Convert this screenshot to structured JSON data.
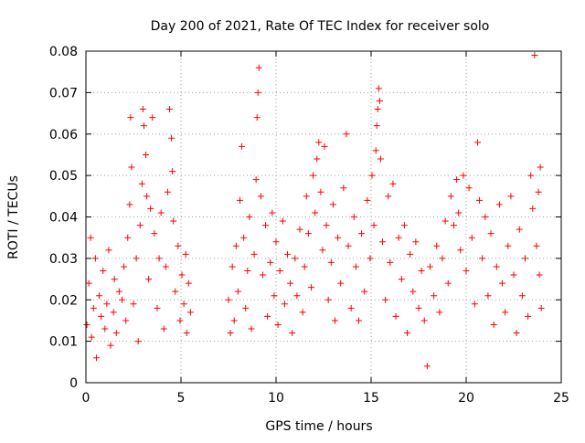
{
  "chart_data": {
    "type": "scatter",
    "title": "Day 200 of 2021, Rate Of TEC Index for receiver solo",
    "xlabel": "GPS time / hours",
    "ylabel": "ROTI / TECUs",
    "xlim": [
      0,
      25
    ],
    "ylim": [
      0,
      0.08
    ],
    "x_ticks": [
      0,
      5,
      10,
      15,
      20,
      25
    ],
    "x_tick_labels": [
      "0",
      "5",
      "10",
      "15",
      "20",
      "25"
    ],
    "y_ticks": [
      0,
      0.01,
      0.02,
      0.03,
      0.04,
      0.05,
      0.06,
      0.07,
      0.08
    ],
    "y_tick_labels": [
      "0",
      "0.01",
      "0.02",
      "0.03",
      "0.04",
      "0.05",
      "0.06",
      "0.07",
      "0.08"
    ],
    "grid": true,
    "marker": "plus",
    "series": [
      {
        "color": "#ff0000",
        "points": [
          [
            0.05,
            0.014
          ],
          [
            0.15,
            0.024
          ],
          [
            0.25,
            0.035
          ],
          [
            0.3,
            0.011
          ],
          [
            0.4,
            0.018
          ],
          [
            0.5,
            0.03
          ],
          [
            0.55,
            0.006
          ],
          [
            0.7,
            0.021
          ],
          [
            0.8,
            0.016
          ],
          [
            0.9,
            0.027
          ],
          [
            1.0,
            0.013
          ],
          [
            1.1,
            0.019
          ],
          [
            1.2,
            0.032
          ],
          [
            1.3,
            0.009
          ],
          [
            1.45,
            0.017
          ],
          [
            1.5,
            0.025
          ],
          [
            1.6,
            0.012
          ],
          [
            1.75,
            0.022
          ],
          [
            1.9,
            0.02
          ],
          [
            2.0,
            0.028
          ],
          [
            2.1,
            0.015
          ],
          [
            2.2,
            0.035
          ],
          [
            2.3,
            0.043
          ],
          [
            2.35,
            0.064
          ],
          [
            2.4,
            0.052
          ],
          [
            2.5,
            0.019
          ],
          [
            2.65,
            0.03
          ],
          [
            2.75,
            0.01
          ],
          [
            2.85,
            0.038
          ],
          [
            2.95,
            0.048
          ],
          [
            3.0,
            0.066
          ],
          [
            3.05,
            0.062
          ],
          [
            3.15,
            0.055
          ],
          [
            3.2,
            0.045
          ],
          [
            3.3,
            0.025
          ],
          [
            3.4,
            0.042
          ],
          [
            3.5,
            0.064
          ],
          [
            3.6,
            0.036
          ],
          [
            3.75,
            0.018
          ],
          [
            3.85,
            0.03
          ],
          [
            3.95,
            0.041
          ],
          [
            4.1,
            0.013
          ],
          [
            4.2,
            0.028
          ],
          [
            4.3,
            0.046
          ],
          [
            4.4,
            0.066
          ],
          [
            4.5,
            0.059
          ],
          [
            4.55,
            0.051
          ],
          [
            4.6,
            0.039
          ],
          [
            4.7,
            0.022
          ],
          [
            4.85,
            0.033
          ],
          [
            4.95,
            0.015
          ],
          [
            5.05,
            0.026
          ],
          [
            5.15,
            0.019
          ],
          [
            5.25,
            0.031
          ],
          [
            5.3,
            0.012
          ],
          [
            5.4,
            0.024
          ],
          [
            5.5,
            0.017
          ],
          [
            7.5,
            0.02
          ],
          [
            7.6,
            0.012
          ],
          [
            7.7,
            0.028
          ],
          [
            7.8,
            0.015
          ],
          [
            7.9,
            0.033
          ],
          [
            8.0,
            0.022
          ],
          [
            8.1,
            0.044
          ],
          [
            8.2,
            0.057
          ],
          [
            8.3,
            0.035
          ],
          [
            8.4,
            0.018
          ],
          [
            8.5,
            0.027
          ],
          [
            8.6,
            0.04
          ],
          [
            8.7,
            0.013
          ],
          [
            8.85,
            0.031
          ],
          [
            8.95,
            0.049
          ],
          [
            9.0,
            0.064
          ],
          [
            9.05,
            0.07
          ],
          [
            9.1,
            0.076
          ],
          [
            9.2,
            0.045
          ],
          [
            9.3,
            0.026
          ],
          [
            9.45,
            0.038
          ],
          [
            9.55,
            0.016
          ],
          [
            9.7,
            0.029
          ],
          [
            9.8,
            0.041
          ],
          [
            9.9,
            0.021
          ],
          [
            10.0,
            0.034
          ],
          [
            10.1,
            0.014
          ],
          [
            10.2,
            0.027
          ],
          [
            10.35,
            0.039
          ],
          [
            10.45,
            0.019
          ],
          [
            10.6,
            0.031
          ],
          [
            10.75,
            0.024
          ],
          [
            10.85,
            0.012
          ],
          [
            11.0,
            0.03
          ],
          [
            11.1,
            0.021
          ],
          [
            11.25,
            0.037
          ],
          [
            11.4,
            0.017
          ],
          [
            11.5,
            0.028
          ],
          [
            11.6,
            0.045
          ],
          [
            11.7,
            0.036
          ],
          [
            11.85,
            0.023
          ],
          [
            11.95,
            0.05
          ],
          [
            12.05,
            0.041
          ],
          [
            12.15,
            0.054
          ],
          [
            12.25,
            0.058
          ],
          [
            12.35,
            0.046
          ],
          [
            12.45,
            0.032
          ],
          [
            12.55,
            0.057
          ],
          [
            12.65,
            0.038
          ],
          [
            12.75,
            0.02
          ],
          [
            12.9,
            0.029
          ],
          [
            13.0,
            0.043
          ],
          [
            13.1,
            0.015
          ],
          [
            13.25,
            0.035
          ],
          [
            13.4,
            0.024
          ],
          [
            13.55,
            0.047
          ],
          [
            13.7,
            0.06
          ],
          [
            13.8,
            0.033
          ],
          [
            13.95,
            0.018
          ],
          [
            14.1,
            0.04
          ],
          [
            14.2,
            0.028
          ],
          [
            14.35,
            0.015
          ],
          [
            14.5,
            0.036
          ],
          [
            14.65,
            0.022
          ],
          [
            14.8,
            0.044
          ],
          [
            14.95,
            0.03
          ],
          [
            15.05,
            0.05
          ],
          [
            15.15,
            0.038
          ],
          [
            15.25,
            0.056
          ],
          [
            15.3,
            0.062
          ],
          [
            15.35,
            0.066
          ],
          [
            15.4,
            0.071
          ],
          [
            15.45,
            0.068
          ],
          [
            15.5,
            0.054
          ],
          [
            15.6,
            0.034
          ],
          [
            15.75,
            0.02
          ],
          [
            15.9,
            0.045
          ],
          [
            16.0,
            0.029
          ],
          [
            16.15,
            0.048
          ],
          [
            16.3,
            0.016
          ],
          [
            16.45,
            0.035
          ],
          [
            16.6,
            0.025
          ],
          [
            16.75,
            0.038
          ],
          [
            16.9,
            0.012
          ],
          [
            17.05,
            0.031
          ],
          [
            17.2,
            0.022
          ],
          [
            17.35,
            0.034
          ],
          [
            17.5,
            0.018
          ],
          [
            17.65,
            0.027
          ],
          [
            17.8,
            0.015
          ],
          [
            17.95,
            0.004
          ],
          [
            18.1,
            0.028
          ],
          [
            18.3,
            0.021
          ],
          [
            18.45,
            0.033
          ],
          [
            18.6,
            0.017
          ],
          [
            18.75,
            0.03
          ],
          [
            18.9,
            0.039
          ],
          [
            19.05,
            0.024
          ],
          [
            19.2,
            0.045
          ],
          [
            19.35,
            0.038
          ],
          [
            19.5,
            0.049
          ],
          [
            19.6,
            0.041
          ],
          [
            19.7,
            0.032
          ],
          [
            19.85,
            0.05
          ],
          [
            20.0,
            0.027
          ],
          [
            20.15,
            0.047
          ],
          [
            20.3,
            0.035
          ],
          [
            20.45,
            0.019
          ],
          [
            20.6,
            0.058
          ],
          [
            20.7,
            0.044
          ],
          [
            20.85,
            0.03
          ],
          [
            21.0,
            0.04
          ],
          [
            21.15,
            0.021
          ],
          [
            21.3,
            0.036
          ],
          [
            21.45,
            0.014
          ],
          [
            21.6,
            0.028
          ],
          [
            21.75,
            0.043
          ],
          [
            21.9,
            0.024
          ],
          [
            22.05,
            0.017
          ],
          [
            22.2,
            0.033
          ],
          [
            22.35,
            0.045
          ],
          [
            22.5,
            0.026
          ],
          [
            22.65,
            0.012
          ],
          [
            22.8,
            0.037
          ],
          [
            22.95,
            0.021
          ],
          [
            23.1,
            0.03
          ],
          [
            23.25,
            0.016
          ],
          [
            23.4,
            0.05
          ],
          [
            23.5,
            0.042
          ],
          [
            23.6,
            0.079
          ],
          [
            23.7,
            0.033
          ],
          [
            23.8,
            0.046
          ],
          [
            23.85,
            0.026
          ],
          [
            23.9,
            0.052
          ],
          [
            23.95,
            0.018
          ]
        ]
      }
    ]
  }
}
